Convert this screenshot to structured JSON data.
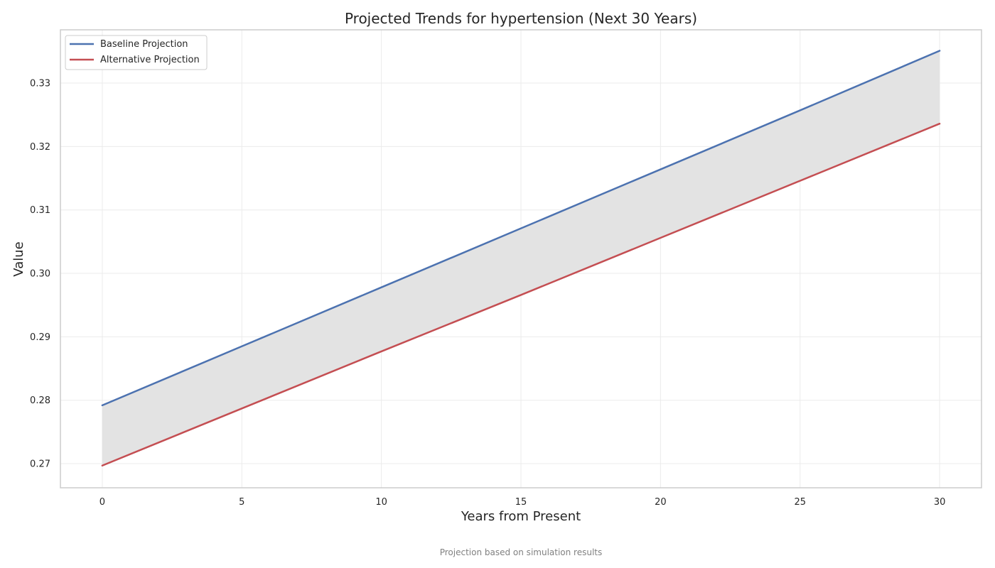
{
  "chart_data": {
    "type": "line",
    "title": "Projected Trends for hypertension (Next 30 Years)",
    "xlabel": "Years from Present",
    "ylabel": "Value",
    "caption": "Projection based on simulation results",
    "xlim": [
      -1.5,
      31.5
    ],
    "ylim": [
      0.2662,
      0.3384
    ],
    "xticks": [
      0,
      5,
      10,
      15,
      20,
      25,
      30
    ],
    "yticks": [
      0.27,
      0.28,
      0.29,
      0.3,
      0.31,
      0.32,
      0.33
    ],
    "ytick_labels": [
      "0.27",
      "0.28",
      "0.29",
      "0.30",
      "0.31",
      "0.32",
      "0.33"
    ],
    "grid": true,
    "legend_position": "top-left",
    "fill_between_series": true,
    "fill_color": "#e3e3e3",
    "series": [
      {
        "name": "Baseline Projection",
        "color": "#4c72b0",
        "x": [
          0,
          5,
          10,
          15,
          20,
          25,
          30
        ],
        "values": [
          0.2792,
          0.2885,
          0.2978,
          0.3071,
          0.3164,
          0.3257,
          0.3351
        ]
      },
      {
        "name": "Alternative Projection",
        "color": "#c44e52",
        "x": [
          0,
          5,
          10,
          15,
          20,
          25,
          30
        ],
        "values": [
          0.2697,
          0.2787,
          0.2877,
          0.2966,
          0.3056,
          0.3146,
          0.3236
        ]
      }
    ]
  }
}
